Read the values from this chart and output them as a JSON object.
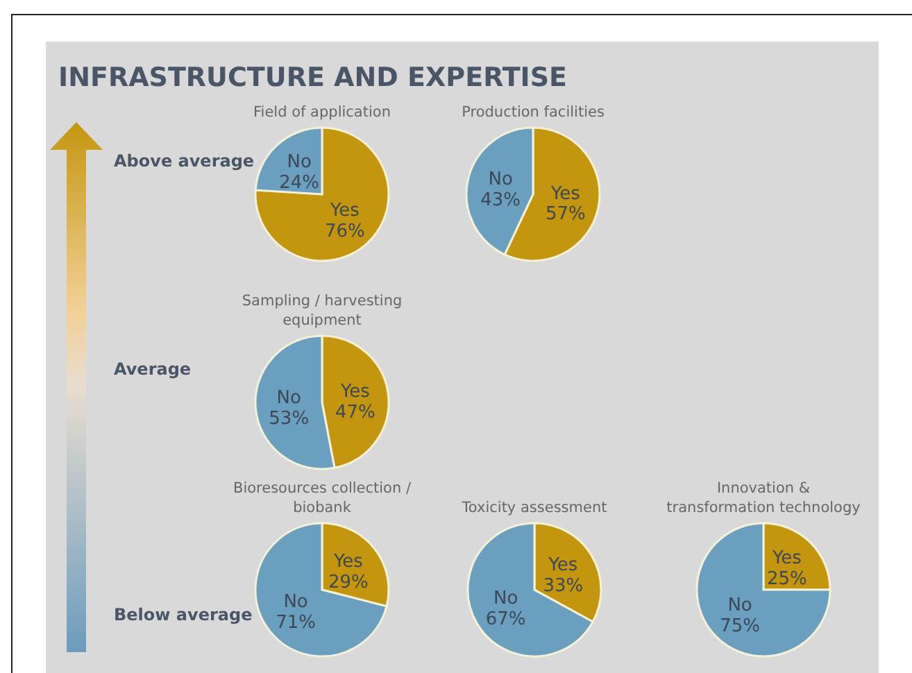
{
  "chart_data": [
    {
      "type": "other",
      "title": "INFRASTRUCTURE AND EXPERTISE",
      "annotations": [
        "Above average",
        "Average",
        "Below average"
      ]
    },
    {
      "type": "pie",
      "title": "Field of application",
      "categories": [
        "Yes",
        "No"
      ],
      "values": [
        76,
        24
      ],
      "colors": [
        "#c4960f",
        "#6a9fbf"
      ],
      "value_labels": [
        "76%",
        "24%"
      ]
    },
    {
      "type": "pie",
      "title": "Production facilities",
      "categories": [
        "Yes",
        "No"
      ],
      "values": [
        57,
        43
      ],
      "colors": [
        "#c4960f",
        "#6a9fbf"
      ],
      "value_labels": [
        "57%",
        "43%"
      ]
    },
    {
      "type": "pie",
      "title": "Sampling / harvesting equipment",
      "categories": [
        "Yes",
        "No"
      ],
      "values": [
        47,
        53
      ],
      "colors": [
        "#c4960f",
        "#6a9fbf"
      ],
      "value_labels": [
        "47%",
        "53%"
      ]
    },
    {
      "type": "pie",
      "title": "Bioresources collection / biobank",
      "categories": [
        "Yes",
        "No"
      ],
      "values": [
        29,
        71
      ],
      "colors": [
        "#c4960f",
        "#6a9fbf"
      ],
      "value_labels": [
        "29%",
        "71%"
      ]
    },
    {
      "type": "pie",
      "title": "Toxicity assessment",
      "categories": [
        "Yes",
        "No"
      ],
      "values": [
        33,
        67
      ],
      "colors": [
        "#c4960f",
        "#6a9fbf"
      ],
      "value_labels": [
        "33%",
        "67%"
      ]
    },
    {
      "type": "pie",
      "title": "Innovation & transformation technology",
      "categories": [
        "Yes",
        "No"
      ],
      "values": [
        25,
        75
      ],
      "colors": [
        "#c4960f",
        "#6a9fbf"
      ],
      "value_labels": [
        "25%",
        "75%"
      ]
    }
  ]
}
